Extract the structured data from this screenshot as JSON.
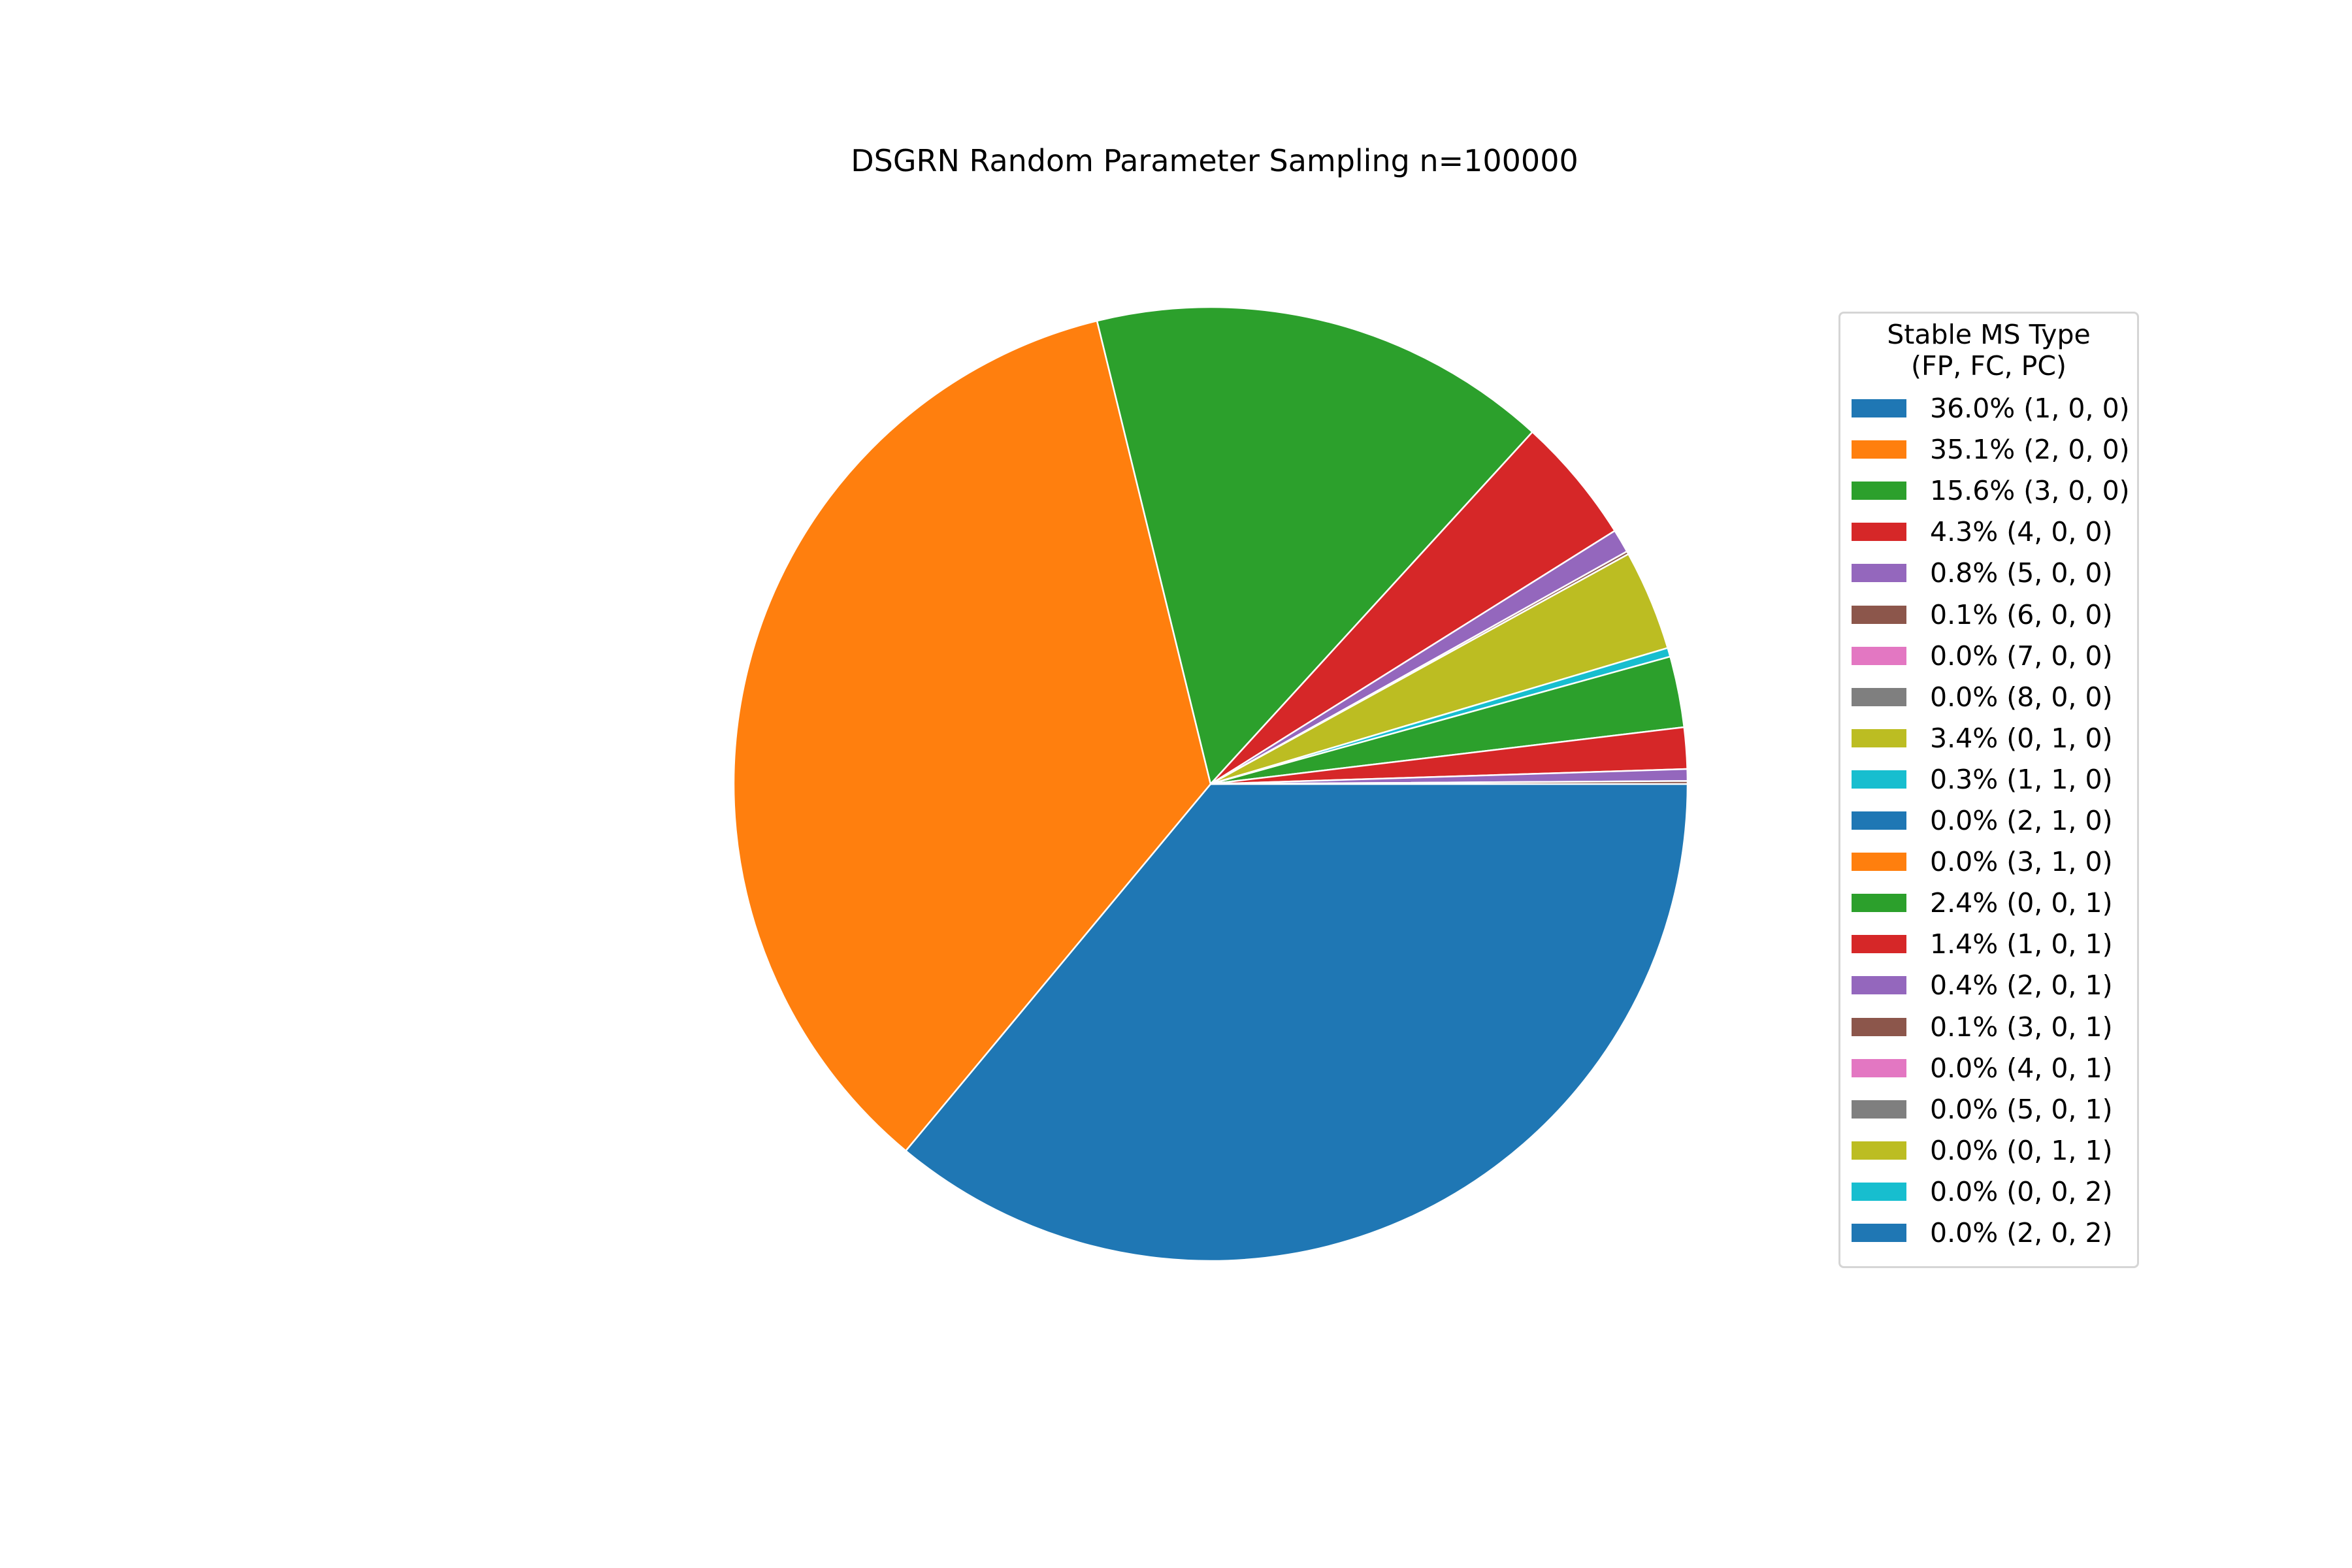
{
  "chart_data": {
    "type": "pie",
    "title": "DSGRN Random Parameter Sampling n=100000",
    "legend": {
      "title": "Stable MS Type\n (FP, FC, PC)",
      "placement": "right"
    },
    "start_angle": 0,
    "direction": "clockwise",
    "slices": [
      {
        "label": "(1, 0, 0)",
        "value": 36.0,
        "display": "36.0% (1, 0, 0)",
        "color": "#1f77b4"
      },
      {
        "label": "(2, 0, 0)",
        "value": 35.1,
        "display": "35.1% (2, 0, 0)",
        "color": "#ff7f0e"
      },
      {
        "label": "(3, 0, 0)",
        "value": 15.6,
        "display": "15.6% (3, 0, 0)",
        "color": "#2ca02c"
      },
      {
        "label": "(4, 0, 0)",
        "value": 4.3,
        "display": "4.3% (4, 0, 0)",
        "color": "#d62728"
      },
      {
        "label": "(5, 0, 0)",
        "value": 0.8,
        "display": "0.8% (5, 0, 0)",
        "color": "#9467bd"
      },
      {
        "label": "(6, 0, 0)",
        "value": 0.1,
        "display": "0.1% (6, 0, 0)",
        "color": "#8c564b"
      },
      {
        "label": "(7, 0, 0)",
        "value": 0.0,
        "display": "0.0% (7, 0, 0)",
        "color": "#e377c2"
      },
      {
        "label": "(8, 0, 0)",
        "value": 0.0,
        "display": "0.0% (8, 0, 0)",
        "color": "#7f7f7f"
      },
      {
        "label": "(0, 1, 0)",
        "value": 3.4,
        "display": "3.4% (0, 1, 0)",
        "color": "#bcbd22"
      },
      {
        "label": "(1, 1, 0)",
        "value": 0.3,
        "display": "0.3% (1, 1, 0)",
        "color": "#17becf"
      },
      {
        "label": "(2, 1, 0)",
        "value": 0.0,
        "display": "0.0% (2, 1, 0)",
        "color": "#1f77b4"
      },
      {
        "label": "(3, 1, 0)",
        "value": 0.0,
        "display": "0.0% (3, 1, 0)",
        "color": "#ff7f0e"
      },
      {
        "label": "(0, 0, 1)",
        "value": 2.4,
        "display": "2.4% (0, 0, 1)",
        "color": "#2ca02c"
      },
      {
        "label": "(1, 0, 1)",
        "value": 1.4,
        "display": "1.4% (1, 0, 1)",
        "color": "#d62728"
      },
      {
        "label": "(2, 0, 1)",
        "value": 0.4,
        "display": "0.4% (2, 0, 1)",
        "color": "#9467bd"
      },
      {
        "label": "(3, 0, 1)",
        "value": 0.1,
        "display": "0.1% (3, 0, 1)",
        "color": "#8c564b"
      },
      {
        "label": "(4, 0, 1)",
        "value": 0.0,
        "display": "0.0% (4, 0, 1)",
        "color": "#e377c2"
      },
      {
        "label": "(5, 0, 1)",
        "value": 0.0,
        "display": "0.0% (5, 0, 1)",
        "color": "#7f7f7f"
      },
      {
        "label": "(0, 1, 1)",
        "value": 0.0,
        "display": "0.0% (0, 1, 1)",
        "color": "#bcbd22"
      },
      {
        "label": "(0, 0, 2)",
        "value": 0.0,
        "display": "0.0% (0, 0, 2)",
        "color": "#17becf"
      },
      {
        "label": "(2, 0, 2)",
        "value": 0.0,
        "display": "0.0% (2, 0, 2)",
        "color": "#1f77b4"
      }
    ]
  }
}
